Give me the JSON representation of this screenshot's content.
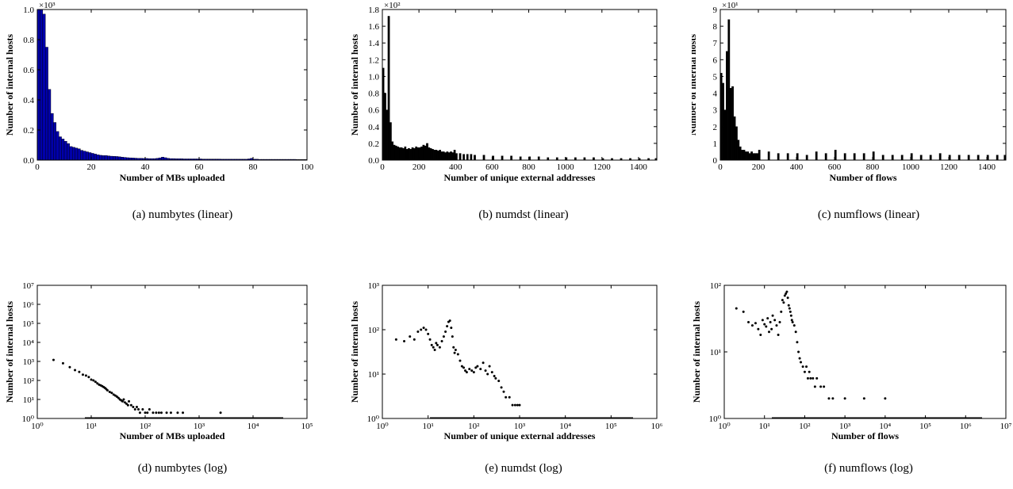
{
  "chart_data": [
    {
      "type": "bar",
      "caption": "(a)  numbytes (linear)",
      "xlabel": "Number of MBs uploaded",
      "ylabel": "Number of internal hosts",
      "scale_label": "×10³",
      "scale_factor": 1000,
      "xlim": [
        0,
        100
      ],
      "ylim": [
        0,
        1.0
      ],
      "xticks": [
        0,
        20,
        40,
        60,
        80,
        100
      ],
      "xtick_labels": [
        "0",
        "20",
        "40",
        "60",
        "80",
        "100"
      ],
      "yticks": [
        0,
        0.2,
        0.4,
        0.6,
        0.8,
        1.0
      ],
      "ytick_labels": [
        "0.0",
        "0.2",
        "0.4",
        "0.6",
        "0.8",
        "1.0"
      ],
      "bar_color": "#0000aa",
      "bin_width": 1,
      "x": [
        0,
        1,
        2,
        3,
        4,
        5,
        6,
        7,
        8,
        9,
        10,
        11,
        12,
        13,
        14,
        15,
        16,
        17,
        18,
        19,
        20,
        21,
        22,
        23,
        24,
        25,
        26,
        27,
        28,
        29,
        30,
        31,
        32,
        33,
        34,
        35,
        36,
        37,
        38,
        39,
        40,
        41,
        42,
        43,
        44,
        45,
        46,
        47,
        48,
        49,
        50,
        51,
        52,
        53,
        54,
        55,
        56,
        57,
        58,
        59,
        60,
        61,
        62,
        63,
        64,
        65,
        66,
        67,
        68,
        69,
        70,
        71,
        72,
        73,
        74,
        75,
        76,
        77,
        78,
        79,
        80,
        81,
        82,
        83,
        84,
        85,
        86,
        87,
        88,
        89,
        90,
        91,
        92,
        93,
        94,
        95,
        96,
        97,
        98,
        99
      ],
      "values": [
        1.0,
        1.0,
        0.97,
        0.75,
        0.47,
        0.31,
        0.25,
        0.19,
        0.155,
        0.14,
        0.125,
        0.11,
        0.09,
        0.085,
        0.08,
        0.075,
        0.065,
        0.06,
        0.055,
        0.05,
        0.045,
        0.04,
        0.035,
        0.032,
        0.03,
        0.03,
        0.028,
        0.026,
        0.025,
        0.024,
        0.022,
        0.02,
        0.018,
        0.016,
        0.015,
        0.014,
        0.013,
        0.012,
        0.012,
        0.011,
        0.011,
        0.01,
        0.01,
        0.01,
        0.012,
        0.015,
        0.02,
        0.016,
        0.012,
        0.01,
        0.01,
        0.009,
        0.009,
        0.009,
        0.008,
        0.008,
        0.008,
        0.008,
        0.008,
        0.008,
        0.008,
        0.007,
        0.007,
        0.007,
        0.007,
        0.007,
        0.007,
        0.007,
        0.006,
        0.006,
        0.006,
        0.006,
        0.006,
        0.006,
        0.006,
        0.006,
        0.006,
        0.006,
        0.008,
        0.012,
        0.006,
        0.006,
        0.005,
        0.005,
        0.005,
        0.005,
        0.005,
        0.005,
        0.005,
        0.005,
        0.005,
        0.005,
        0.005,
        0.005,
        0.005,
        0.005,
        0.004,
        0.004,
        0.004,
        0.004
      ]
    },
    {
      "type": "bar",
      "caption": "(b)  numdst (linear)",
      "xlabel": "Number of unique external addresses",
      "ylabel": "Number of internal hosts",
      "scale_label": "×10²",
      "scale_factor": 100,
      "xlim": [
        0,
        1500
      ],
      "ylim": [
        0,
        1.8
      ],
      "xticks": [
        0,
        200,
        400,
        600,
        800,
        1000,
        1200,
        1400
      ],
      "xtick_labels": [
        "0",
        "200",
        "400",
        "600",
        "800",
        "1000",
        "1200",
        "1400"
      ],
      "yticks": [
        0,
        0.2,
        0.4,
        0.6,
        0.8,
        1.0,
        1.2,
        1.4,
        1.6,
        1.8
      ],
      "ytick_labels": [
        "0.0",
        "0.2",
        "0.4",
        "0.6",
        "0.8",
        "1.0",
        "1.2",
        "1.4",
        "1.6",
        "1.8"
      ],
      "bar_color": "#000000",
      "bin_width": 10,
      "x": [
        0,
        10,
        20,
        30,
        40,
        50,
        60,
        70,
        80,
        90,
        100,
        110,
        120,
        130,
        140,
        150,
        160,
        170,
        180,
        190,
        200,
        210,
        220,
        230,
        240,
        250,
        260,
        270,
        280,
        290,
        300,
        310,
        320,
        330,
        340,
        350,
        360,
        370,
        380,
        390,
        400,
        420,
        440,
        460,
        480,
        500,
        550,
        600,
        650,
        700,
        750,
        800,
        850,
        900,
        950,
        1000,
        1050,
        1100,
        1150,
        1200,
        1250,
        1300,
        1350,
        1400,
        1450,
        1490
      ],
      "values": [
        1.1,
        0.8,
        0.6,
        1.72,
        0.45,
        0.22,
        0.18,
        0.17,
        0.16,
        0.15,
        0.15,
        0.14,
        0.16,
        0.13,
        0.14,
        0.13,
        0.15,
        0.14,
        0.16,
        0.15,
        0.15,
        0.16,
        0.18,
        0.17,
        0.2,
        0.15,
        0.14,
        0.13,
        0.12,
        0.12,
        0.11,
        0.12,
        0.1,
        0.1,
        0.09,
        0.1,
        0.09,
        0.1,
        0.09,
        0.12,
        0.08,
        0.08,
        0.07,
        0.07,
        0.07,
        0.06,
        0.06,
        0.05,
        0.05,
        0.05,
        0.04,
        0.04,
        0.04,
        0.03,
        0.03,
        0.03,
        0.03,
        0.03,
        0.03,
        0.02,
        0.02,
        0.02,
        0.02,
        0.02,
        0.02,
        0.02
      ]
    },
    {
      "type": "bar",
      "caption": "(c)  numflows (linear)",
      "xlabel": "Number of flows",
      "ylabel": "Number of internal hosts",
      "scale_label": "×10¹",
      "scale_factor": 10,
      "xlim": [
        0,
        1500
      ],
      "ylim": [
        0,
        9
      ],
      "xticks": [
        0,
        200,
        400,
        600,
        800,
        1000,
        1200,
        1400
      ],
      "xtick_labels": [
        "0",
        "200",
        "400",
        "600",
        "800",
        "1000",
        "1200",
        "1400"
      ],
      "yticks": [
        0,
        1,
        2,
        3,
        4,
        5,
        6,
        7,
        8,
        9
      ],
      "ytick_labels": [
        "0",
        "1",
        "2",
        "3",
        "4",
        "5",
        "6",
        "7",
        "8",
        "9"
      ],
      "bar_color": "#000000",
      "bin_width": 10,
      "x": [
        0,
        10,
        20,
        30,
        40,
        50,
        60,
        70,
        80,
        90,
        100,
        110,
        120,
        130,
        140,
        150,
        160,
        170,
        180,
        190,
        200,
        250,
        300,
        350,
        400,
        450,
        500,
        550,
        600,
        650,
        700,
        750,
        800,
        850,
        900,
        950,
        1000,
        1050,
        1100,
        1150,
        1200,
        1250,
        1300,
        1350,
        1400,
        1450,
        1490
      ],
      "values": [
        5.2,
        4.6,
        3.0,
        6.5,
        8.4,
        4.3,
        4.4,
        2.6,
        2.0,
        1.2,
        0.8,
        0.6,
        0.6,
        0.5,
        0.5,
        0.4,
        0.5,
        0.4,
        0.4,
        0.4,
        0.6,
        0.5,
        0.4,
        0.4,
        0.4,
        0.3,
        0.5,
        0.4,
        0.6,
        0.4,
        0.4,
        0.4,
        0.5,
        0.3,
        0.3,
        0.3,
        0.4,
        0.3,
        0.3,
        0.4,
        0.3,
        0.3,
        0.3,
        0.3,
        0.3,
        0.3,
        0.3
      ]
    },
    {
      "type": "scatter",
      "caption": "(d)  numbytes (log)",
      "xlabel": "Number of MBs uploaded",
      "ylabel": "Number of internal hosts",
      "log_x": true,
      "log_y": true,
      "xlim": [
        1,
        100000
      ],
      "ylim": [
        1,
        10000000
      ],
      "xtick_labels": [
        "10⁰",
        "10¹",
        "10²",
        "10³",
        "10⁴",
        "10⁵"
      ],
      "ytick_labels": [
        "10⁰",
        "10¹",
        "10²",
        "10³",
        "10⁴",
        "10⁵",
        "10⁶",
        "10⁷"
      ],
      "x": [
        2,
        3,
        4,
        5,
        6,
        7,
        8,
        9,
        10,
        11,
        12,
        13,
        14,
        15,
        16,
        17,
        18,
        19,
        20,
        22,
        24,
        26,
        28,
        30,
        32,
        34,
        36,
        38,
        40,
        42,
        45,
        48,
        50,
        55,
        60,
        65,
        70,
        75,
        80,
        90,
        100,
        110,
        120,
        140,
        160,
        180,
        200,
        250,
        300,
        400,
        500,
        2500
      ],
      "y": [
        1200,
        800,
        500,
        350,
        280,
        200,
        180,
        150,
        110,
        100,
        85,
        70,
        60,
        55,
        50,
        45,
        40,
        35,
        30,
        25,
        22,
        18,
        16,
        14,
        12,
        10,
        9,
        8,
        10,
        7,
        6,
        5,
        8,
        5,
        4,
        3,
        4,
        3,
        2,
        3,
        2,
        2,
        3,
        2,
        2,
        2,
        2,
        2,
        2,
        2,
        2,
        2
      ]
    },
    {
      "type": "scatter",
      "caption": "(e)  numdst (log)",
      "xlabel": "Number of unique external addresses",
      "ylabel": "Number of internal hosts",
      "log_x": true,
      "log_y": true,
      "xlim": [
        1,
        1000000
      ],
      "ylim": [
        1,
        1000
      ],
      "xtick_labels": [
        "10⁰",
        "10¹",
        "10²",
        "10³",
        "10⁴",
        "10⁵",
        "10⁶"
      ],
      "ytick_labels": [
        "10⁰",
        "10¹",
        "10²",
        "10³"
      ],
      "x": [
        2,
        3,
        4,
        5,
        6,
        7,
        8,
        9,
        10,
        11,
        12,
        13,
        14,
        15,
        16,
        18,
        20,
        22,
        24,
        26,
        28,
        30,
        32,
        34,
        36,
        38,
        40,
        45,
        50,
        55,
        60,
        65,
        70,
        80,
        90,
        100,
        110,
        120,
        140,
        160,
        180,
        200,
        220,
        250,
        280,
        300,
        350,
        400,
        450,
        500,
        600,
        700,
        800,
        900,
        1000
      ],
      "y": [
        60,
        55,
        70,
        60,
        90,
        100,
        110,
        100,
        80,
        60,
        45,
        40,
        35,
        50,
        45,
        40,
        55,
        70,
        90,
        120,
        150,
        160,
        110,
        70,
        40,
        30,
        35,
        28,
        20,
        15,
        14,
        12,
        11,
        13,
        12,
        11,
        14,
        15,
        13,
        18,
        12,
        10,
        15,
        11,
        9,
        8,
        7,
        5,
        4,
        3,
        3,
        2,
        2,
        2,
        2
      ]
    },
    {
      "type": "scatter",
      "caption": "(f)  numflows (log)",
      "xlabel": "Number of flows",
      "ylabel": "Number of internal hosts",
      "log_x": true,
      "log_y": true,
      "xlim": [
        1,
        10000000
      ],
      "ylim": [
        1,
        100
      ],
      "xtick_labels": [
        "10⁰",
        "10¹",
        "10²",
        "10³",
        "10⁴",
        "10⁵",
        "10⁶",
        "10⁷"
      ],
      "ytick_labels": [
        "10⁰",
        "10¹",
        "10²"
      ],
      "x": [
        2,
        3,
        4,
        5,
        6,
        7,
        8,
        9,
        10,
        11,
        12,
        13,
        14,
        15,
        16,
        18,
        20,
        22,
        24,
        26,
        28,
        30,
        32,
        34,
        36,
        38,
        40,
        42,
        44,
        46,
        48,
        50,
        55,
        60,
        65,
        70,
        75,
        80,
        90,
        100,
        110,
        120,
        130,
        140,
        160,
        180,
        200,
        250,
        300,
        400,
        500,
        1000,
        3000,
        10000
      ],
      "y": [
        45,
        40,
        28,
        25,
        27,
        22,
        18,
        30,
        26,
        24,
        32,
        20,
        28,
        22,
        35,
        30,
        25,
        18,
        28,
        40,
        60,
        55,
        70,
        75,
        80,
        65,
        50,
        45,
        40,
        35,
        30,
        28,
        25,
        20,
        14,
        10,
        8,
        7,
        6,
        5,
        6,
        4,
        5,
        4,
        4,
        3,
        4,
        3,
        3,
        2,
        2,
        2,
        2,
        2
      ]
    }
  ]
}
